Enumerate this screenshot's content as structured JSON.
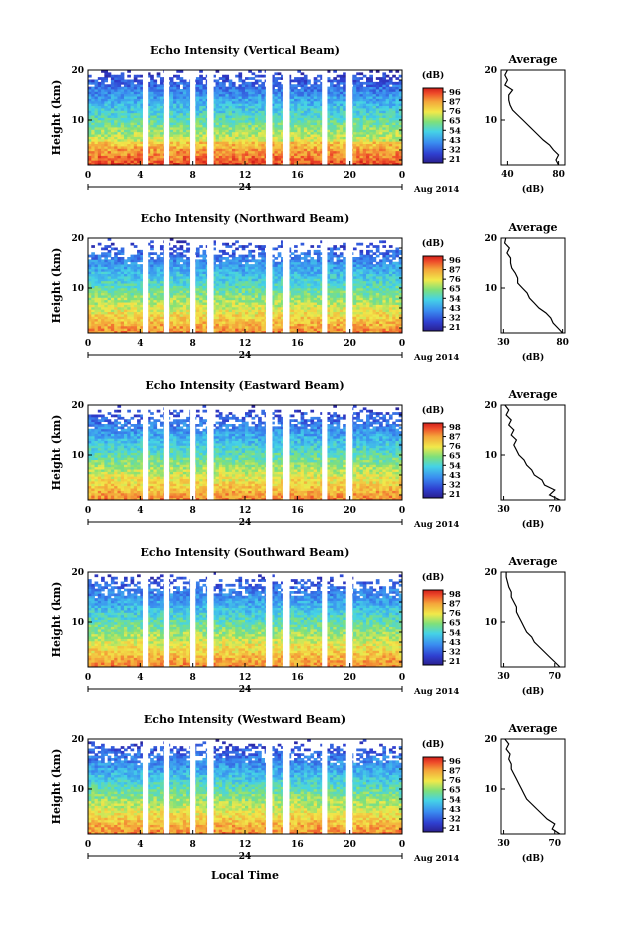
{
  "figure": {
    "x_axis_label": "Local Time",
    "date_label": "Aug 2014",
    "day_label": "24",
    "y_axis_label": "Height (km)",
    "colorbar_unit": "(dB)",
    "avg_title": "Average",
    "avg_xlabel": "(dB)"
  },
  "chart_data": [
    {
      "type": "heatmap",
      "title": "Echo Intensity (Vertical Beam)",
      "xlabel": "Local Time",
      "ylabel": "Height (km)",
      "xlim": [
        0,
        24
      ],
      "x_ticks": [
        "0",
        "4",
        "8",
        "12",
        "16",
        "20",
        "0"
      ],
      "ylim": [
        1,
        20
      ],
      "y_ticks": [
        "10",
        "20"
      ],
      "colorbar": {
        "label": "(dB)",
        "ticks": [
          "96",
          "87",
          "76",
          "65",
          "54",
          "43",
          "32",
          "21"
        ]
      },
      "data_gaps_hours": [
        [
          4.2,
          4.6
        ],
        [
          5.8,
          6.2
        ],
        [
          7.8,
          8.2
        ],
        [
          9.1,
          9.6
        ],
        [
          13.6,
          14.1
        ],
        [
          14.9,
          15.4
        ],
        [
          17.9,
          18.3
        ],
        [
          19.7,
          20.2
        ]
      ],
      "average_profile": {
        "title": "Average",
        "xlabel": "(dB)",
        "xlim": [
          35,
          85
        ],
        "x_ticks": [
          "40",
          "80"
        ],
        "height_km": [
          1,
          2,
          3,
          4,
          5,
          6,
          7,
          8,
          9,
          10,
          11,
          12,
          13,
          14,
          15,
          16,
          17,
          18,
          19,
          20
        ],
        "intensity_db": [
          80,
          78,
          80,
          76,
          73,
          68,
          64,
          60,
          56,
          52,
          48,
          44,
          42,
          41,
          41,
          44,
          38,
          40,
          38,
          40
        ]
      }
    },
    {
      "type": "heatmap",
      "title": "Echo Intensity (Northward Beam)",
      "xlabel": "Local Time",
      "ylabel": "Height (km)",
      "xlim": [
        0,
        24
      ],
      "x_ticks": [
        "0",
        "4",
        "8",
        "12",
        "16",
        "20",
        "0"
      ],
      "ylim": [
        1,
        20
      ],
      "y_ticks": [
        "10",
        "20"
      ],
      "colorbar": {
        "label": "(dB)",
        "ticks": [
          "96",
          "87",
          "76",
          "65",
          "54",
          "43",
          "32",
          "21"
        ]
      },
      "data_gaps_hours": [
        [
          4.2,
          4.6
        ],
        [
          5.8,
          6.2
        ],
        [
          7.8,
          8.2
        ],
        [
          9.1,
          9.6
        ],
        [
          13.6,
          14.1
        ],
        [
          14.9,
          15.4
        ],
        [
          17.9,
          18.3
        ],
        [
          19.7,
          20.2
        ]
      ],
      "average_profile": {
        "title": "Average",
        "xlabel": "(dB)",
        "xlim": [
          28,
          82
        ],
        "x_ticks": [
          "30",
          "80"
        ],
        "height_km": [
          1,
          2,
          3,
          4,
          5,
          6,
          7,
          8,
          9,
          10,
          11,
          12,
          13,
          14,
          15,
          16,
          17,
          18,
          19,
          20
        ],
        "intensity_db": [
          80,
          76,
          72,
          70,
          66,
          60,
          56,
          52,
          50,
          46,
          42,
          42,
          40,
          37,
          36,
          36,
          33,
          35,
          31,
          32
        ]
      }
    },
    {
      "type": "heatmap",
      "title": "Echo Intensity (Eastward Beam)",
      "xlabel": "Local Time",
      "ylabel": "Height (km)",
      "xlim": [
        0,
        24
      ],
      "x_ticks": [
        "0",
        "4",
        "8",
        "12",
        "16",
        "20",
        "0"
      ],
      "ylim": [
        1,
        20
      ],
      "y_ticks": [
        "10",
        "20"
      ],
      "colorbar": {
        "label": "(dB)",
        "ticks": [
          "98",
          "87",
          "76",
          "65",
          "54",
          "43",
          "32",
          "21"
        ]
      },
      "data_gaps_hours": [
        [
          4.2,
          4.6
        ],
        [
          5.8,
          6.2
        ],
        [
          7.8,
          8.2
        ],
        [
          9.1,
          9.6
        ],
        [
          13.6,
          14.1
        ],
        [
          14.9,
          15.4
        ],
        [
          17.9,
          18.3
        ],
        [
          19.7,
          20.2
        ]
      ],
      "average_profile": {
        "title": "Average",
        "xlabel": "(dB)",
        "xlim": [
          28,
          78
        ],
        "x_ticks": [
          "30",
          "70"
        ],
        "height_km": [
          1,
          2,
          3,
          4,
          5,
          6,
          7,
          8,
          9,
          10,
          11,
          12,
          13,
          14,
          15,
          16,
          17,
          18,
          19,
          20
        ],
        "intensity_db": [
          74,
          66,
          70,
          62,
          60,
          54,
          52,
          48,
          46,
          42,
          40,
          38,
          40,
          36,
          38,
          34,
          36,
          32,
          34,
          31
        ]
      }
    },
    {
      "type": "heatmap",
      "title": "Echo Intensity (Southward Beam)",
      "xlabel": "Local Time",
      "ylabel": "Height (km)",
      "xlim": [
        0,
        24
      ],
      "x_ticks": [
        "0",
        "4",
        "8",
        "12",
        "16",
        "20",
        "0"
      ],
      "ylim": [
        1,
        20
      ],
      "y_ticks": [
        "10",
        "20"
      ],
      "colorbar": {
        "label": "(dB)",
        "ticks": [
          "98",
          "87",
          "76",
          "65",
          "54",
          "43",
          "32",
          "21"
        ]
      },
      "data_gaps_hours": [
        [
          4.2,
          4.6
        ],
        [
          5.8,
          6.2
        ],
        [
          7.8,
          8.2
        ],
        [
          9.1,
          9.6
        ],
        [
          13.6,
          14.1
        ],
        [
          14.9,
          15.4
        ],
        [
          17.9,
          18.3
        ],
        [
          19.7,
          20.2
        ]
      ],
      "average_profile": {
        "title": "Average",
        "xlabel": "(dB)",
        "xlim": [
          28,
          78
        ],
        "x_ticks": [
          "30",
          "70"
        ],
        "height_km": [
          1,
          2,
          3,
          4,
          5,
          6,
          7,
          8,
          9,
          10,
          11,
          12,
          13,
          14,
          15,
          16,
          17,
          18,
          19,
          20
        ],
        "intensity_db": [
          74,
          70,
          66,
          62,
          58,
          54,
          52,
          48,
          46,
          44,
          42,
          40,
          40,
          38,
          36,
          36,
          34,
          33,
          32,
          32
        ]
      }
    },
    {
      "type": "heatmap",
      "title": "Echo Intensity (Westward Beam)",
      "xlabel": "Local Time",
      "ylabel": "Height (km)",
      "xlim": [
        0,
        24
      ],
      "x_ticks": [
        "0",
        "4",
        "8",
        "12",
        "16",
        "20",
        "0"
      ],
      "ylim": [
        1,
        20
      ],
      "y_ticks": [
        "10",
        "20"
      ],
      "colorbar": {
        "label": "(dB)",
        "ticks": [
          "96",
          "87",
          "76",
          "65",
          "54",
          "43",
          "32",
          "21"
        ]
      },
      "data_gaps_hours": [
        [
          4.2,
          4.6
        ],
        [
          5.8,
          6.2
        ],
        [
          7.8,
          8.2
        ],
        [
          9.1,
          9.6
        ],
        [
          13.6,
          14.1
        ],
        [
          14.9,
          15.4
        ],
        [
          17.9,
          18.3
        ],
        [
          19.7,
          20.2
        ]
      ],
      "average_profile": {
        "title": "Average",
        "xlabel": "(dB)",
        "xlim": [
          28,
          78
        ],
        "x_ticks": [
          "30",
          "70"
        ],
        "height_km": [
          1,
          2,
          3,
          4,
          5,
          6,
          7,
          8,
          9,
          10,
          11,
          12,
          13,
          14,
          15,
          16,
          17,
          18,
          19,
          20
        ],
        "intensity_db": [
          74,
          68,
          70,
          64,
          60,
          56,
          52,
          48,
          46,
          44,
          42,
          40,
          38,
          36,
          36,
          34,
          35,
          32,
          34,
          31
        ]
      }
    }
  ]
}
